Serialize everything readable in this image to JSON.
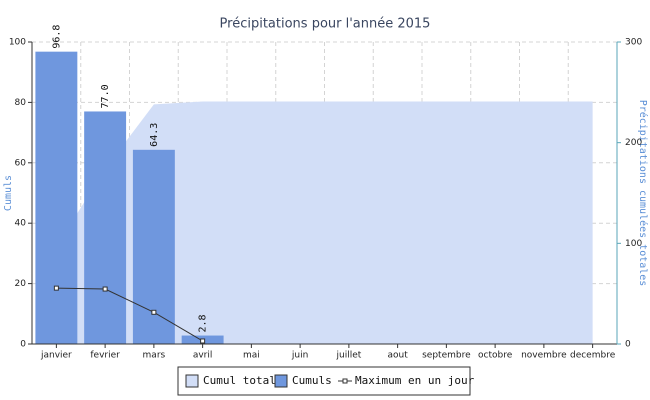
{
  "chart_data": {
    "type": "bar",
    "title": "Précipitations pour l'année 2015",
    "y_label": "Cumuls",
    "y2_label": "Précipitations cumulées totales",
    "categories": [
      "janvier",
      "fevrier",
      "mars",
      "avril",
      "mai",
      "juin",
      "juillet",
      "aout",
      "septembre",
      "octobre",
      "novembre",
      "decembre"
    ],
    "ylim": [
      0,
      100
    ],
    "yticks": [
      0,
      20,
      40,
      60,
      80,
      100
    ],
    "y2lim": [
      0,
      300
    ],
    "y2ticks": [
      0,
      100,
      200,
      300
    ],
    "grid": true,
    "legend": "bottom",
    "series": [
      {
        "name": "Cumul total",
        "type": "area",
        "axis": "y2",
        "color": "#d2def7",
        "values": [
          96.8,
          173.8,
          238.1,
          240.9,
          240.9,
          240.9,
          240.9,
          240.9,
          240.9,
          240.9,
          240.9,
          240.9
        ]
      },
      {
        "name": "Cumuls",
        "type": "bar",
        "color": "#6f97de",
        "values": [
          96.8,
          77.0,
          64.3,
          2.8,
          null,
          null,
          null,
          null,
          null,
          null,
          null,
          null
        ],
        "value_labels": [
          "96.8",
          "77.0",
          "64.3",
          "2.8",
          null,
          null,
          null,
          null,
          null,
          null,
          null,
          null
        ]
      },
      {
        "name": "Maximum en un jour",
        "type": "line",
        "color": "#333333",
        "values": [
          18.5,
          18.2,
          10.5,
          1.0,
          null,
          null,
          null,
          null,
          null,
          null,
          null,
          null
        ]
      }
    ]
  }
}
